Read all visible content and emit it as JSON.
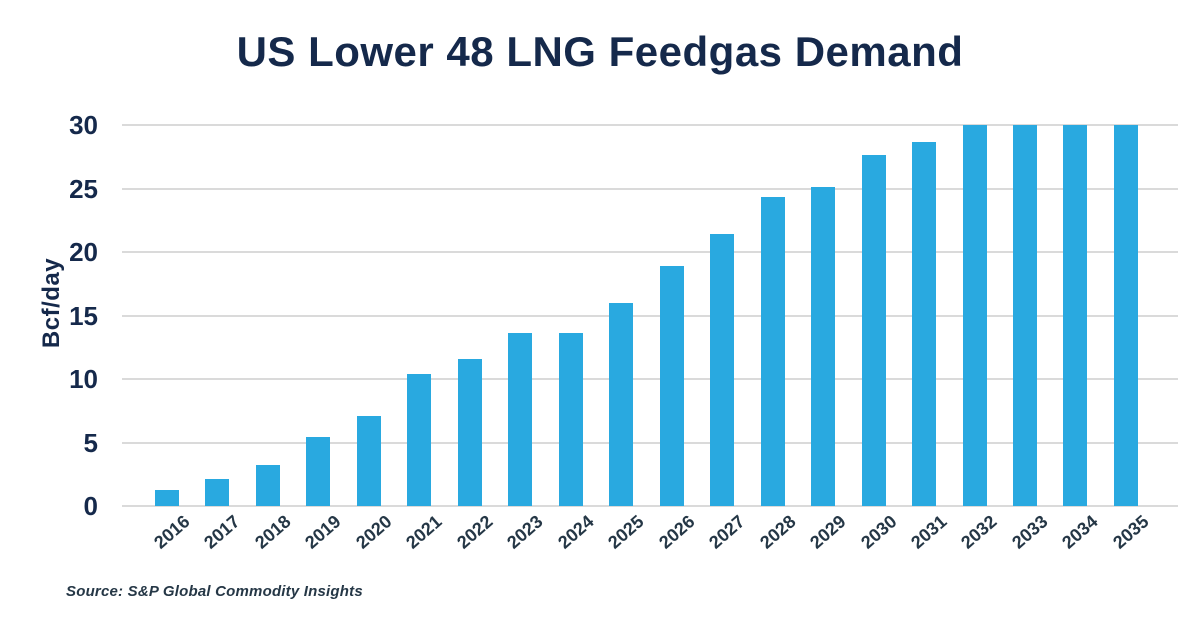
{
  "source_note": "Source: S&P Global Commodity Insights",
  "colors": {
    "bar": "#29A9E0",
    "title_text": "#15294B",
    "axis_number_text": "#15294B",
    "category_text": "#253746",
    "source_text": "#253746",
    "gridline": "#DADADA",
    "background": "#FFFFFF"
  },
  "chart_data": {
    "type": "bar",
    "title": "US Lower 48 LNG Feedgas Demand",
    "xlabel": "",
    "ylabel": "Bcf/day",
    "categories": [
      "2016",
      "2017",
      "2018",
      "2019",
      "2020",
      "2021",
      "2022",
      "2023",
      "2024",
      "2025",
      "2026",
      "2027",
      "2028",
      "2029",
      "2030",
      "2031",
      "2032",
      "2033",
      "2034",
      "2035"
    ],
    "values": [
      1.3,
      2.1,
      3.2,
      5.4,
      7.1,
      10.4,
      11.6,
      13.6,
      13.6,
      16.0,
      18.9,
      21.4,
      24.3,
      25.1,
      27.6,
      28.7,
      30.0,
      30.0,
      30.0,
      30.0
    ],
    "ylim": [
      0,
      30
    ],
    "yticks": [
      0,
      5,
      10,
      15,
      20,
      25,
      30
    ],
    "grid": "horizontal",
    "legend": "none"
  }
}
